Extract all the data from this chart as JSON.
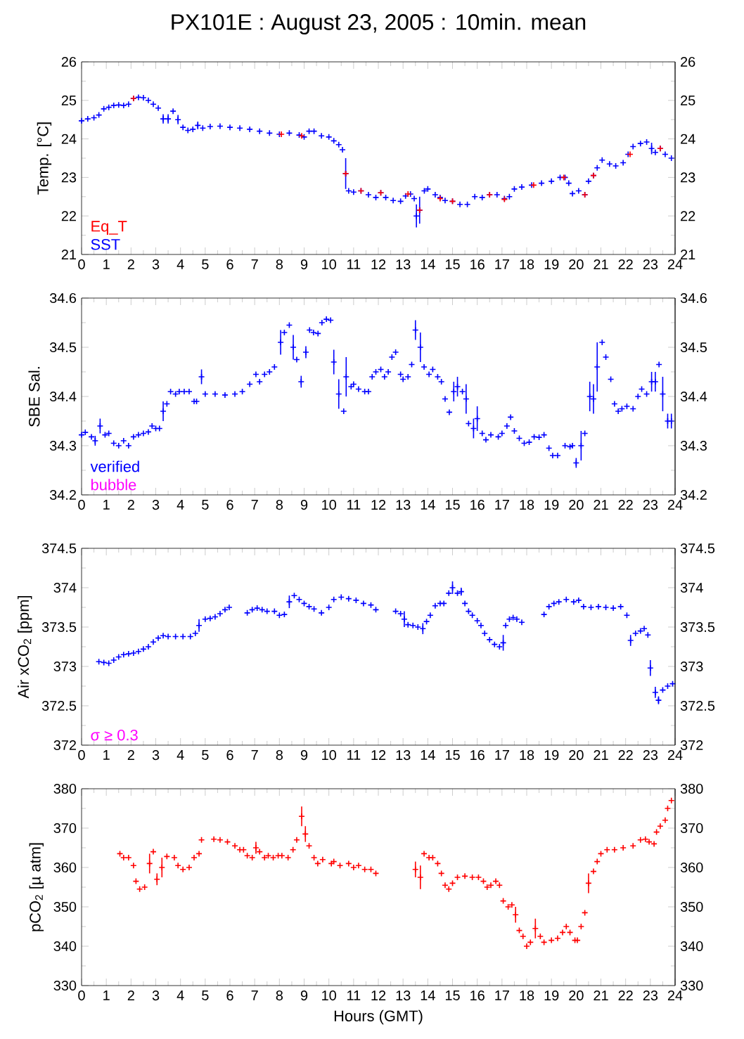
{
  "chart_data": [
    {
      "type": "scatter",
      "title": "PX101E : August 23, 2005 : 10min. mean",
      "ylabel": "Temp. [°C]",
      "xlim": [
        0,
        24
      ],
      "xticks": [
        0,
        1,
        2,
        3,
        4,
        5,
        6,
        7,
        8,
        9,
        10,
        11,
        12,
        13,
        14,
        15,
        16,
        17,
        18,
        19,
        20,
        21,
        22,
        23,
        24
      ],
      "ylim": [
        21,
        26
      ],
      "yticks": [
        21,
        22,
        23,
        24,
        25,
        26
      ],
      "y2lim": [
        21,
        26
      ],
      "y2ticks": [
        21,
        22,
        23,
        24,
        25,
        26
      ],
      "marker": "cross",
      "legend": "bottom left",
      "series": [
        {
          "name": "Eq_T",
          "color": "#ff0000",
          "x": [
            2.1,
            8.08,
            8.9,
            10.68,
            11.3,
            12.1,
            13.2,
            13.67,
            14.5,
            15.0,
            16.5,
            17.1,
            18.28,
            19.5,
            20.35,
            20.7,
            22.18,
            23.4
          ],
          "values": [
            25.05,
            24.12,
            24.08,
            23.1,
            22.65,
            22.6,
            22.57,
            22.15,
            22.45,
            22.38,
            22.55,
            22.43,
            22.8,
            23.0,
            22.55,
            23.05,
            23.6,
            23.75
          ]
        },
        {
          "name": "SST",
          "color": "#0000ff",
          "x": [
            0,
            0.25,
            0.5,
            0.7,
            0.9,
            1.1,
            1.3,
            1.5,
            1.7,
            1.9,
            2.1,
            2.3,
            2.5,
            2.7,
            2.9,
            3.1,
            3.3,
            3.5,
            3.7,
            3.9,
            4.1,
            4.3,
            4.5,
            4.7,
            4.9,
            5.2,
            5.6,
            6.0,
            6.4,
            6.8,
            7.2,
            7.6,
            8.0,
            8.4,
            8.8,
            9.0,
            9.2,
            9.4,
            9.7,
            10.0,
            10.2,
            10.4,
            10.55,
            10.68,
            10.8,
            11.0,
            11.3,
            11.6,
            11.9,
            12.1,
            12.3,
            12.6,
            12.9,
            13.1,
            13.3,
            13.45,
            13.54,
            13.67,
            13.86,
            14.0,
            14.3,
            14.5,
            14.7,
            15.0,
            15.3,
            15.6,
            15.9,
            16.2,
            16.5,
            16.8,
            17.1,
            17.3,
            17.5,
            17.8,
            18.2,
            18.6,
            19.0,
            19.35,
            19.55,
            19.7,
            19.85,
            20.1,
            20.35,
            20.5,
            20.7,
            20.85,
            21.05,
            21.35,
            21.6,
            21.9,
            22.1,
            22.3,
            22.6,
            22.85,
            23.05,
            23.2,
            23.4,
            23.6,
            23.85
          ],
          "values": [
            24.47,
            24.52,
            24.55,
            24.62,
            24.78,
            24.82,
            24.87,
            24.88,
            24.87,
            24.9,
            25.05,
            25.08,
            25.07,
            25.0,
            24.9,
            24.8,
            24.52,
            24.52,
            24.72,
            24.5,
            24.3,
            24.22,
            24.25,
            24.35,
            24.28,
            24.32,
            24.33,
            24.3,
            24.28,
            24.25,
            24.2,
            24.15,
            24.12,
            24.15,
            24.1,
            24.05,
            24.2,
            24.2,
            24.08,
            24.05,
            23.95,
            23.85,
            23.72,
            23.1,
            22.65,
            22.62,
            22.65,
            22.55,
            22.48,
            22.6,
            22.48,
            22.4,
            22.38,
            22.52,
            22.57,
            22.45,
            22.0,
            22.15,
            22.65,
            22.7,
            22.55,
            22.48,
            22.4,
            22.38,
            22.3,
            22.3,
            22.5,
            22.48,
            22.55,
            22.55,
            22.45,
            22.5,
            22.7,
            22.75,
            22.8,
            22.85,
            22.9,
            23.0,
            23.0,
            22.85,
            22.58,
            22.65,
            22.55,
            22.9,
            23.05,
            23.25,
            23.45,
            23.35,
            23.3,
            23.38,
            23.6,
            23.8,
            23.88,
            23.92,
            23.75,
            23.65,
            23.75,
            23.6,
            23.5
          ],
          "errors": [
            null,
            null,
            null,
            null,
            null,
            null,
            null,
            null,
            null,
            null,
            null,
            null,
            null,
            null,
            null,
            null,
            0.12,
            0.12,
            null,
            0.12,
            null,
            null,
            null,
            0.1,
            null,
            null,
            null,
            null,
            null,
            null,
            null,
            null,
            null,
            null,
            null,
            null,
            null,
            null,
            null,
            null,
            null,
            null,
            null,
            0.4,
            null,
            null,
            null,
            null,
            null,
            null,
            null,
            null,
            null,
            null,
            null,
            null,
            0.3,
            0.35,
            null,
            null,
            null,
            null,
            null,
            null,
            null,
            null,
            null,
            null,
            null,
            null,
            null,
            null,
            null,
            null,
            null,
            null,
            null,
            null,
            null,
            null,
            null,
            null,
            null,
            null,
            null,
            null,
            null,
            null,
            null,
            null,
            null,
            null,
            null,
            null,
            0.15,
            null,
            null,
            null,
            null
          ]
        }
      ]
    },
    {
      "type": "scatter",
      "ylabel": "SBE Sal.",
      "xlim": [
        0,
        24
      ],
      "xticks": [
        0,
        1,
        2,
        3,
        4,
        5,
        6,
        7,
        8,
        9,
        10,
        11,
        12,
        13,
        14,
        15,
        16,
        17,
        18,
        19,
        20,
        21,
        22,
        23,
        24
      ],
      "ylim": [
        34.2,
        34.6
      ],
      "yticks": [
        34.2,
        34.3,
        34.4,
        34.5,
        34.6
      ],
      "y2lim": [
        34.2,
        34.6
      ],
      "y2ticks": [
        34.2,
        34.3,
        34.4,
        34.5,
        34.6
      ],
      "marker": "cross",
      "legend": "bottom left",
      "series": [
        {
          "name": "verified",
          "color": "#0000ff",
          "x": [
            0.0,
            0.15,
            0.4,
            0.55,
            0.75,
            0.95,
            1.1,
            1.3,
            1.5,
            1.7,
            1.9,
            2.1,
            2.3,
            2.5,
            2.7,
            2.85,
            3.0,
            3.15,
            3.3,
            3.45,
            3.6,
            3.8,
            3.95,
            4.15,
            4.35,
            4.55,
            4.65,
            4.85,
            5.0,
            5.4,
            5.8,
            6.2,
            6.5,
            6.8,
            7.05,
            7.2,
            7.4,
            7.6,
            7.8,
            8.05,
            8.2,
            8.4,
            8.56,
            8.7,
            8.88,
            9.07,
            9.22,
            9.38,
            9.56,
            9.72,
            9.9,
            10.07,
            10.2,
            10.4,
            10.6,
            10.7,
            10.9,
            11.0,
            11.2,
            11.45,
            11.6,
            11.75,
            11.9,
            12.1,
            12.25,
            12.4,
            12.55,
            12.7,
            12.9,
            13.0,
            13.2,
            13.35,
            13.5,
            13.7,
            13.85,
            14.05,
            14.2,
            14.4,
            14.55,
            14.7,
            14.87,
            15.05,
            15.2,
            15.4,
            15.55,
            15.65,
            15.85,
            16.0,
            16.2,
            16.35,
            16.55,
            16.85,
            17.0,
            17.2,
            17.35,
            17.5,
            17.7,
            17.9,
            18.1,
            18.3,
            18.5,
            18.7,
            18.9,
            19.05,
            19.25,
            19.55,
            19.75,
            19.85,
            20.0,
            20.2,
            20.35,
            20.55,
            20.7,
            20.85,
            21.05,
            21.2,
            21.4,
            21.55,
            21.7,
            21.85,
            22.05,
            22.3,
            22.5,
            22.65,
            22.85,
            23.05,
            23.2,
            23.35,
            23.5,
            23.7,
            23.85
          ],
          "values": [
            34.322,
            34.327,
            34.318,
            34.31,
            34.34,
            34.322,
            34.325,
            34.305,
            34.3,
            34.31,
            34.3,
            34.318,
            34.322,
            34.325,
            34.328,
            34.34,
            34.335,
            34.335,
            34.37,
            34.385,
            34.41,
            34.405,
            34.41,
            34.41,
            34.41,
            34.39,
            34.39,
            34.44,
            34.405,
            34.405,
            34.403,
            34.405,
            34.41,
            34.425,
            34.445,
            34.43,
            34.445,
            34.45,
            34.46,
            34.51,
            34.53,
            34.545,
            34.5,
            34.475,
            34.43,
            34.49,
            34.535,
            34.53,
            34.528,
            34.55,
            34.557,
            34.555,
            34.47,
            34.405,
            34.37,
            34.44,
            34.42,
            34.425,
            34.415,
            34.41,
            34.41,
            34.44,
            34.45,
            34.455,
            34.44,
            34.45,
            34.48,
            34.49,
            34.445,
            34.435,
            34.44,
            34.465,
            34.535,
            34.5,
            34.46,
            34.445,
            34.455,
            34.44,
            34.43,
            34.395,
            34.368,
            34.41,
            34.42,
            34.41,
            34.395,
            34.345,
            34.335,
            34.355,
            34.325,
            34.312,
            34.322,
            34.318,
            34.325,
            34.34,
            34.358,
            34.33,
            34.315,
            34.305,
            34.307,
            34.318,
            34.317,
            34.322,
            34.295,
            34.28,
            34.28,
            34.3,
            34.298,
            34.3,
            34.265,
            34.3,
            34.325,
            34.4,
            34.395,
            34.46,
            34.51,
            34.48,
            34.435,
            34.385,
            34.37,
            34.375,
            34.38,
            34.375,
            34.4,
            34.415,
            34.405,
            34.43,
            34.43,
            34.465,
            34.405,
            34.35,
            34.35
          ],
          "errors": [
            null,
            null,
            null,
            0.01,
            0.015,
            null,
            null,
            null,
            null,
            null,
            null,
            null,
            null,
            null,
            null,
            null,
            null,
            null,
            0.02,
            null,
            null,
            null,
            null,
            null,
            null,
            null,
            null,
            0.015,
            null,
            null,
            null,
            null,
            null,
            null,
            null,
            null,
            null,
            null,
            null,
            0.025,
            null,
            null,
            0.025,
            null,
            0.012,
            0.012,
            null,
            null,
            null,
            null,
            null,
            null,
            0.025,
            0.03,
            null,
            0.04,
            null,
            null,
            null,
            null,
            null,
            null,
            null,
            null,
            null,
            null,
            null,
            null,
            null,
            null,
            null,
            null,
            0.02,
            0.03,
            null,
            null,
            null,
            null,
            null,
            null,
            null,
            0.02,
            0.02,
            null,
            0.03,
            null,
            0.02,
            0.025,
            null,
            null,
            null,
            null,
            null,
            null,
            null,
            null,
            null,
            null,
            null,
            null,
            null,
            null,
            null,
            null,
            null,
            null,
            null,
            null,
            0.01,
            0.03,
            null,
            0.03,
            0.03,
            0.05,
            null,
            null,
            null,
            null,
            null,
            null,
            null,
            null,
            null,
            null,
            null,
            0.02,
            0.02,
            null,
            0.035,
            0.015,
            0.015
          ]
        },
        {
          "name": "bubble",
          "color": "#ff00ff"
        }
      ]
    },
    {
      "type": "scatter",
      "ylabel": "Air xCO$_{2}$ [ppm]",
      "xlim": [
        0,
        24
      ],
      "xticks": [
        0,
        1,
        2,
        3,
        4,
        5,
        6,
        7,
        8,
        9,
        10,
        11,
        12,
        13,
        14,
        15,
        16,
        17,
        18,
        19,
        20,
        21,
        22,
        23,
        24
      ],
      "ylim": [
        372,
        374.5
      ],
      "yticks": [
        372,
        372.5,
        373,
        373.5,
        374,
        374.5
      ],
      "y2lim": [
        372,
        374.5
      ],
      "y2ticks": [
        372,
        372.5,
        373,
        373.5,
        374,
        374.5
      ],
      "marker": "cross",
      "legend": "bottom left",
      "series": [
        {
          "color": "#0000ff",
          "x": [
            0.7,
            0.9,
            1.1,
            1.3,
            1.5,
            1.7,
            1.9,
            2.1,
            2.3,
            2.5,
            2.7,
            2.9,
            3.1,
            3.3,
            3.5,
            3.8,
            4.1,
            4.4,
            4.6,
            4.75,
            5.0,
            5.2,
            5.4,
            5.6,
            5.8,
            5.97,
            6.7,
            6.9,
            7.1,
            7.3,
            7.5,
            7.8,
            8.0,
            8.2,
            8.4,
            8.6,
            8.8,
            9.0,
            9.2,
            9.4,
            9.7,
            10.0,
            10.2,
            10.5,
            10.8,
            11.1,
            11.4,
            11.7,
            11.9,
            12.7,
            12.9,
            13.05,
            13.2,
            13.4,
            13.6,
            13.8,
            13.95,
            14.1,
            14.3,
            14.5,
            14.65,
            14.85,
            15.0,
            15.2,
            15.35,
            15.5,
            15.65,
            15.8,
            16.0,
            16.15,
            16.3,
            16.5,
            16.7,
            16.9,
            17.05,
            17.15,
            17.3,
            17.45,
            17.6,
            17.8,
            18.7,
            18.9,
            19.1,
            19.3,
            19.6,
            19.9,
            20.1,
            20.3,
            20.6,
            20.9,
            21.2,
            21.5,
            21.8,
            22.05,
            22.2,
            22.4,
            22.6,
            22.75,
            22.9,
            23.0,
            23.2,
            23.33,
            23.5,
            23.7,
            23.9
          ],
          "values": [
            373.06,
            373.05,
            373.04,
            373.08,
            373.12,
            373.15,
            373.16,
            373.17,
            373.19,
            373.22,
            373.25,
            373.31,
            373.36,
            373.39,
            373.38,
            373.38,
            373.38,
            373.38,
            373.42,
            373.52,
            373.6,
            373.61,
            373.63,
            373.67,
            373.72,
            373.75,
            373.68,
            373.72,
            373.74,
            373.72,
            373.7,
            373.7,
            373.65,
            373.66,
            373.82,
            373.9,
            373.85,
            373.8,
            373.76,
            373.73,
            373.68,
            373.75,
            373.85,
            373.88,
            373.86,
            373.84,
            373.8,
            373.78,
            373.72,
            373.7,
            373.67,
            373.6,
            373.53,
            373.52,
            373.5,
            373.48,
            373.57,
            373.65,
            373.77,
            373.8,
            373.8,
            373.93,
            374.0,
            373.93,
            373.95,
            373.8,
            373.7,
            373.65,
            373.58,
            373.52,
            373.42,
            373.34,
            373.28,
            373.25,
            373.3,
            373.52,
            373.6,
            373.62,
            373.6,
            373.56,
            373.66,
            373.76,
            373.8,
            373.82,
            373.85,
            373.82,
            373.84,
            373.76,
            373.75,
            373.76,
            373.75,
            373.74,
            373.76,
            373.65,
            373.33,
            373.42,
            373.45,
            373.48,
            373.4,
            372.98,
            372.67,
            372.57,
            372.7,
            372.75,
            372.78
          ],
          "errors": [
            null,
            null,
            null,
            null,
            null,
            null,
            null,
            null,
            null,
            null,
            null,
            null,
            null,
            null,
            null,
            null,
            null,
            null,
            null,
            0.08,
            null,
            null,
            null,
            null,
            null,
            null,
            null,
            null,
            null,
            null,
            null,
            null,
            null,
            null,
            0.08,
            null,
            null,
            null,
            null,
            null,
            null,
            null,
            null,
            null,
            null,
            null,
            null,
            null,
            null,
            null,
            null,
            0.1,
            null,
            null,
            null,
            0.07,
            null,
            null,
            null,
            null,
            null,
            null,
            0.08,
            null,
            0.05,
            null,
            null,
            null,
            null,
            null,
            null,
            null,
            null,
            null,
            0.1,
            null,
            null,
            null,
            null,
            null,
            null,
            null,
            null,
            null,
            null,
            null,
            null,
            null,
            null,
            null,
            null,
            null,
            null,
            null,
            0.07,
            null,
            null,
            null,
            null,
            0.1,
            0.07,
            0.05,
            null,
            null,
            null
          ]
        },
        {
          "name": "σ ≥ 0.3",
          "color": "#ff00ff"
        }
      ]
    },
    {
      "type": "scatter",
      "ylabel": "pCO$_{2}$ [µ atm]",
      "xlabel": "Hours (GMT)",
      "xlim": [
        0,
        24
      ],
      "xticks": [
        0,
        1,
        2,
        3,
        4,
        5,
        6,
        7,
        8,
        9,
        10,
        11,
        12,
        13,
        14,
        15,
        16,
        17,
        18,
        19,
        20,
        21,
        22,
        23,
        24
      ],
      "ylim": [
        330,
        380
      ],
      "yticks": [
        330,
        340,
        350,
        360,
        370,
        380
      ],
      "y2lim": [
        330,
        380
      ],
      "y2ticks": [
        330,
        340,
        350,
        360,
        370,
        380
      ],
      "marker": "cross",
      "series": [
        {
          "color": "#ff0000",
          "x": [
            1.55,
            1.7,
            1.9,
            2.1,
            2.2,
            2.35,
            2.55,
            2.75,
            2.9,
            3.05,
            3.25,
            3.45,
            3.75,
            3.9,
            4.1,
            4.35,
            4.55,
            4.75,
            4.85,
            5.35,
            5.6,
            5.9,
            6.2,
            6.4,
            6.55,
            6.7,
            6.9,
            7.05,
            7.2,
            7.4,
            7.55,
            7.75,
            7.95,
            8.1,
            8.35,
            8.55,
            8.7,
            8.9,
            9.05,
            9.2,
            9.4,
            9.55,
            9.75,
            10.1,
            10.2,
            10.45,
            10.8,
            11.0,
            11.2,
            11.45,
            11.7,
            11.9,
            13.5,
            13.7,
            13.85,
            14.05,
            14.2,
            14.4,
            14.55,
            14.7,
            14.85,
            15.0,
            15.2,
            15.5,
            15.8,
            16.05,
            16.25,
            16.4,
            16.55,
            16.75,
            16.9,
            17.05,
            17.25,
            17.4,
            17.55,
            17.7,
            17.85,
            18.0,
            18.15,
            18.35,
            18.55,
            18.7,
            19.0,
            19.25,
            19.45,
            19.6,
            19.75,
            19.95,
            20.05,
            20.2,
            20.35,
            20.5,
            20.7,
            20.85,
            21.0,
            21.25,
            21.55,
            21.9,
            22.3,
            22.6,
            22.8,
            22.95,
            23.15,
            23.25,
            23.4,
            23.6,
            23.7,
            23.85
          ],
          "values": [
            363.5,
            362.5,
            362.5,
            360.5,
            356.5,
            354.5,
            355,
            361,
            364,
            357,
            360,
            362.8,
            362.5,
            360.5,
            359.5,
            360,
            362.5,
            363.5,
            367,
            367.2,
            367,
            366.5,
            365.5,
            364.5,
            364.5,
            363,
            362.5,
            365,
            364,
            362.5,
            363,
            362.5,
            363,
            363,
            362.5,
            364.5,
            367,
            373,
            368.5,
            365.5,
            362.5,
            361,
            362,
            361,
            361.5,
            360.5,
            361,
            360,
            360.5,
            359.5,
            359.5,
            358.5,
            359.5,
            357.5,
            363.5,
            362.5,
            362.5,
            361,
            358.5,
            355.5,
            354.5,
            356,
            357.5,
            357.8,
            357.5,
            357.5,
            356.5,
            355,
            355.5,
            356.5,
            355.5,
            351.5,
            350,
            350.5,
            348,
            344,
            342.5,
            340,
            341,
            344.5,
            342.5,
            341,
            341.5,
            342,
            343.5,
            345,
            343.5,
            341.5,
            341.5,
            345,
            348.5,
            356,
            359,
            361.5,
            363.5,
            364.5,
            364.5,
            365,
            365.5,
            367,
            367.2,
            366.5,
            366,
            369,
            370.5,
            372,
            375,
            377
          ],
          "errors": [
            null,
            null,
            null,
            null,
            null,
            null,
            null,
            2.5,
            null,
            1.5,
            2.5,
            null,
            null,
            null,
            null,
            null,
            null,
            null,
            null,
            null,
            null,
            null,
            null,
            null,
            null,
            null,
            null,
            1.5,
            null,
            null,
            null,
            null,
            null,
            null,
            null,
            null,
            null,
            2.5,
            2,
            null,
            null,
            null,
            null,
            null,
            null,
            null,
            null,
            null,
            null,
            null,
            null,
            null,
            2,
            3,
            null,
            null,
            null,
            null,
            null,
            null,
            null,
            null,
            null,
            null,
            null,
            null,
            null,
            null,
            null,
            null,
            null,
            null,
            null,
            null,
            2,
            null,
            null,
            null,
            null,
            2.5,
            null,
            null,
            null,
            null,
            null,
            null,
            null,
            null,
            null,
            null,
            null,
            2.5,
            null,
            null,
            null,
            null,
            null,
            null,
            null,
            null,
            null,
            null,
            null,
            null,
            null,
            null,
            null,
            null
          ]
        }
      ]
    }
  ]
}
